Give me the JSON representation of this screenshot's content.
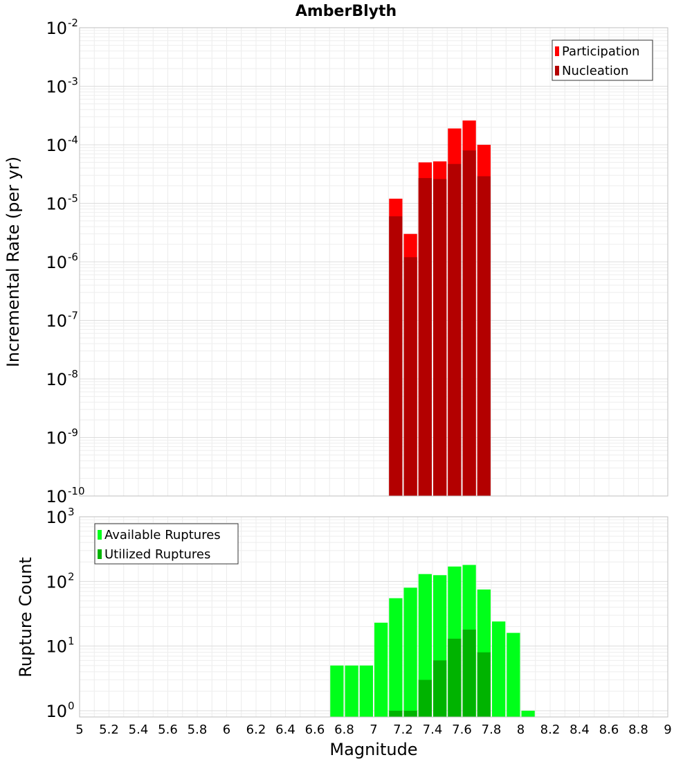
{
  "chart_data": [
    {
      "type": "bar",
      "title": "AmberBlyth",
      "xlabel": "",
      "ylabel": "Incremental Rate (per yr)",
      "yscale": "log",
      "xlim": [
        5,
        9
      ],
      "ylim": [
        1e-10,
        0.01
      ],
      "y_tick_exponents": [
        -10,
        -9,
        -8,
        -7,
        -6,
        -5,
        -4,
        -3,
        -2
      ],
      "bin_width": 0.1,
      "grid": true,
      "legend_position": "top-right",
      "series": [
        {
          "name": "Participation",
          "color": "#ff0000",
          "x": [
            7.15,
            7.25,
            7.35,
            7.45,
            7.55,
            7.65,
            7.75
          ],
          "values": [
            1.2e-05,
            3e-06,
            5e-05,
            5.2e-05,
            0.00019,
            0.00026,
            0.0001
          ]
        },
        {
          "name": "Nucleation",
          "color": "#b30000",
          "x": [
            7.15,
            7.25,
            7.35,
            7.45,
            7.55,
            7.65,
            7.75
          ],
          "values": [
            6e-06,
            1.2e-06,
            2.7e-05,
            2.6e-05,
            4.7e-05,
            8e-05,
            2.9e-05
          ]
        }
      ]
    },
    {
      "type": "bar",
      "title": "",
      "xlabel": "Magnitude",
      "ylabel": "Rupture Count",
      "yscale": "log",
      "xlim": [
        5,
        9
      ],
      "ylim": [
        0.8,
        1000
      ],
      "y_tick_exponents": [
        0,
        1,
        2,
        3
      ],
      "x_ticks": [
        "5",
        "5.2",
        "5.4",
        "5.6",
        "5.8",
        "6",
        "6.2",
        "6.4",
        "6.6",
        "6.8",
        "7",
        "7.2",
        "7.4",
        "7.6",
        "7.8",
        "8",
        "8.2",
        "8.4",
        "8.6",
        "8.8",
        "9"
      ],
      "bin_width": 0.1,
      "grid": true,
      "legend_position": "top-left",
      "series": [
        {
          "name": "Available Ruptures",
          "color": "#00ff1a",
          "x": [
            6.75,
            6.85,
            6.95,
            7.05,
            7.15,
            7.25,
            7.35,
            7.45,
            7.55,
            7.65,
            7.75,
            7.85,
            7.95,
            8.05
          ],
          "values": [
            5,
            5,
            5,
            23,
            55,
            80,
            130,
            125,
            170,
            180,
            75,
            24,
            16,
            1
          ]
        },
        {
          "name": "Utilized Ruptures",
          "color": "#00b300",
          "x": [
            7.15,
            7.25,
            7.35,
            7.45,
            7.55,
            7.65,
            7.75
          ],
          "values": [
            1,
            1,
            3,
            6,
            13,
            18,
            8
          ]
        }
      ]
    }
  ]
}
